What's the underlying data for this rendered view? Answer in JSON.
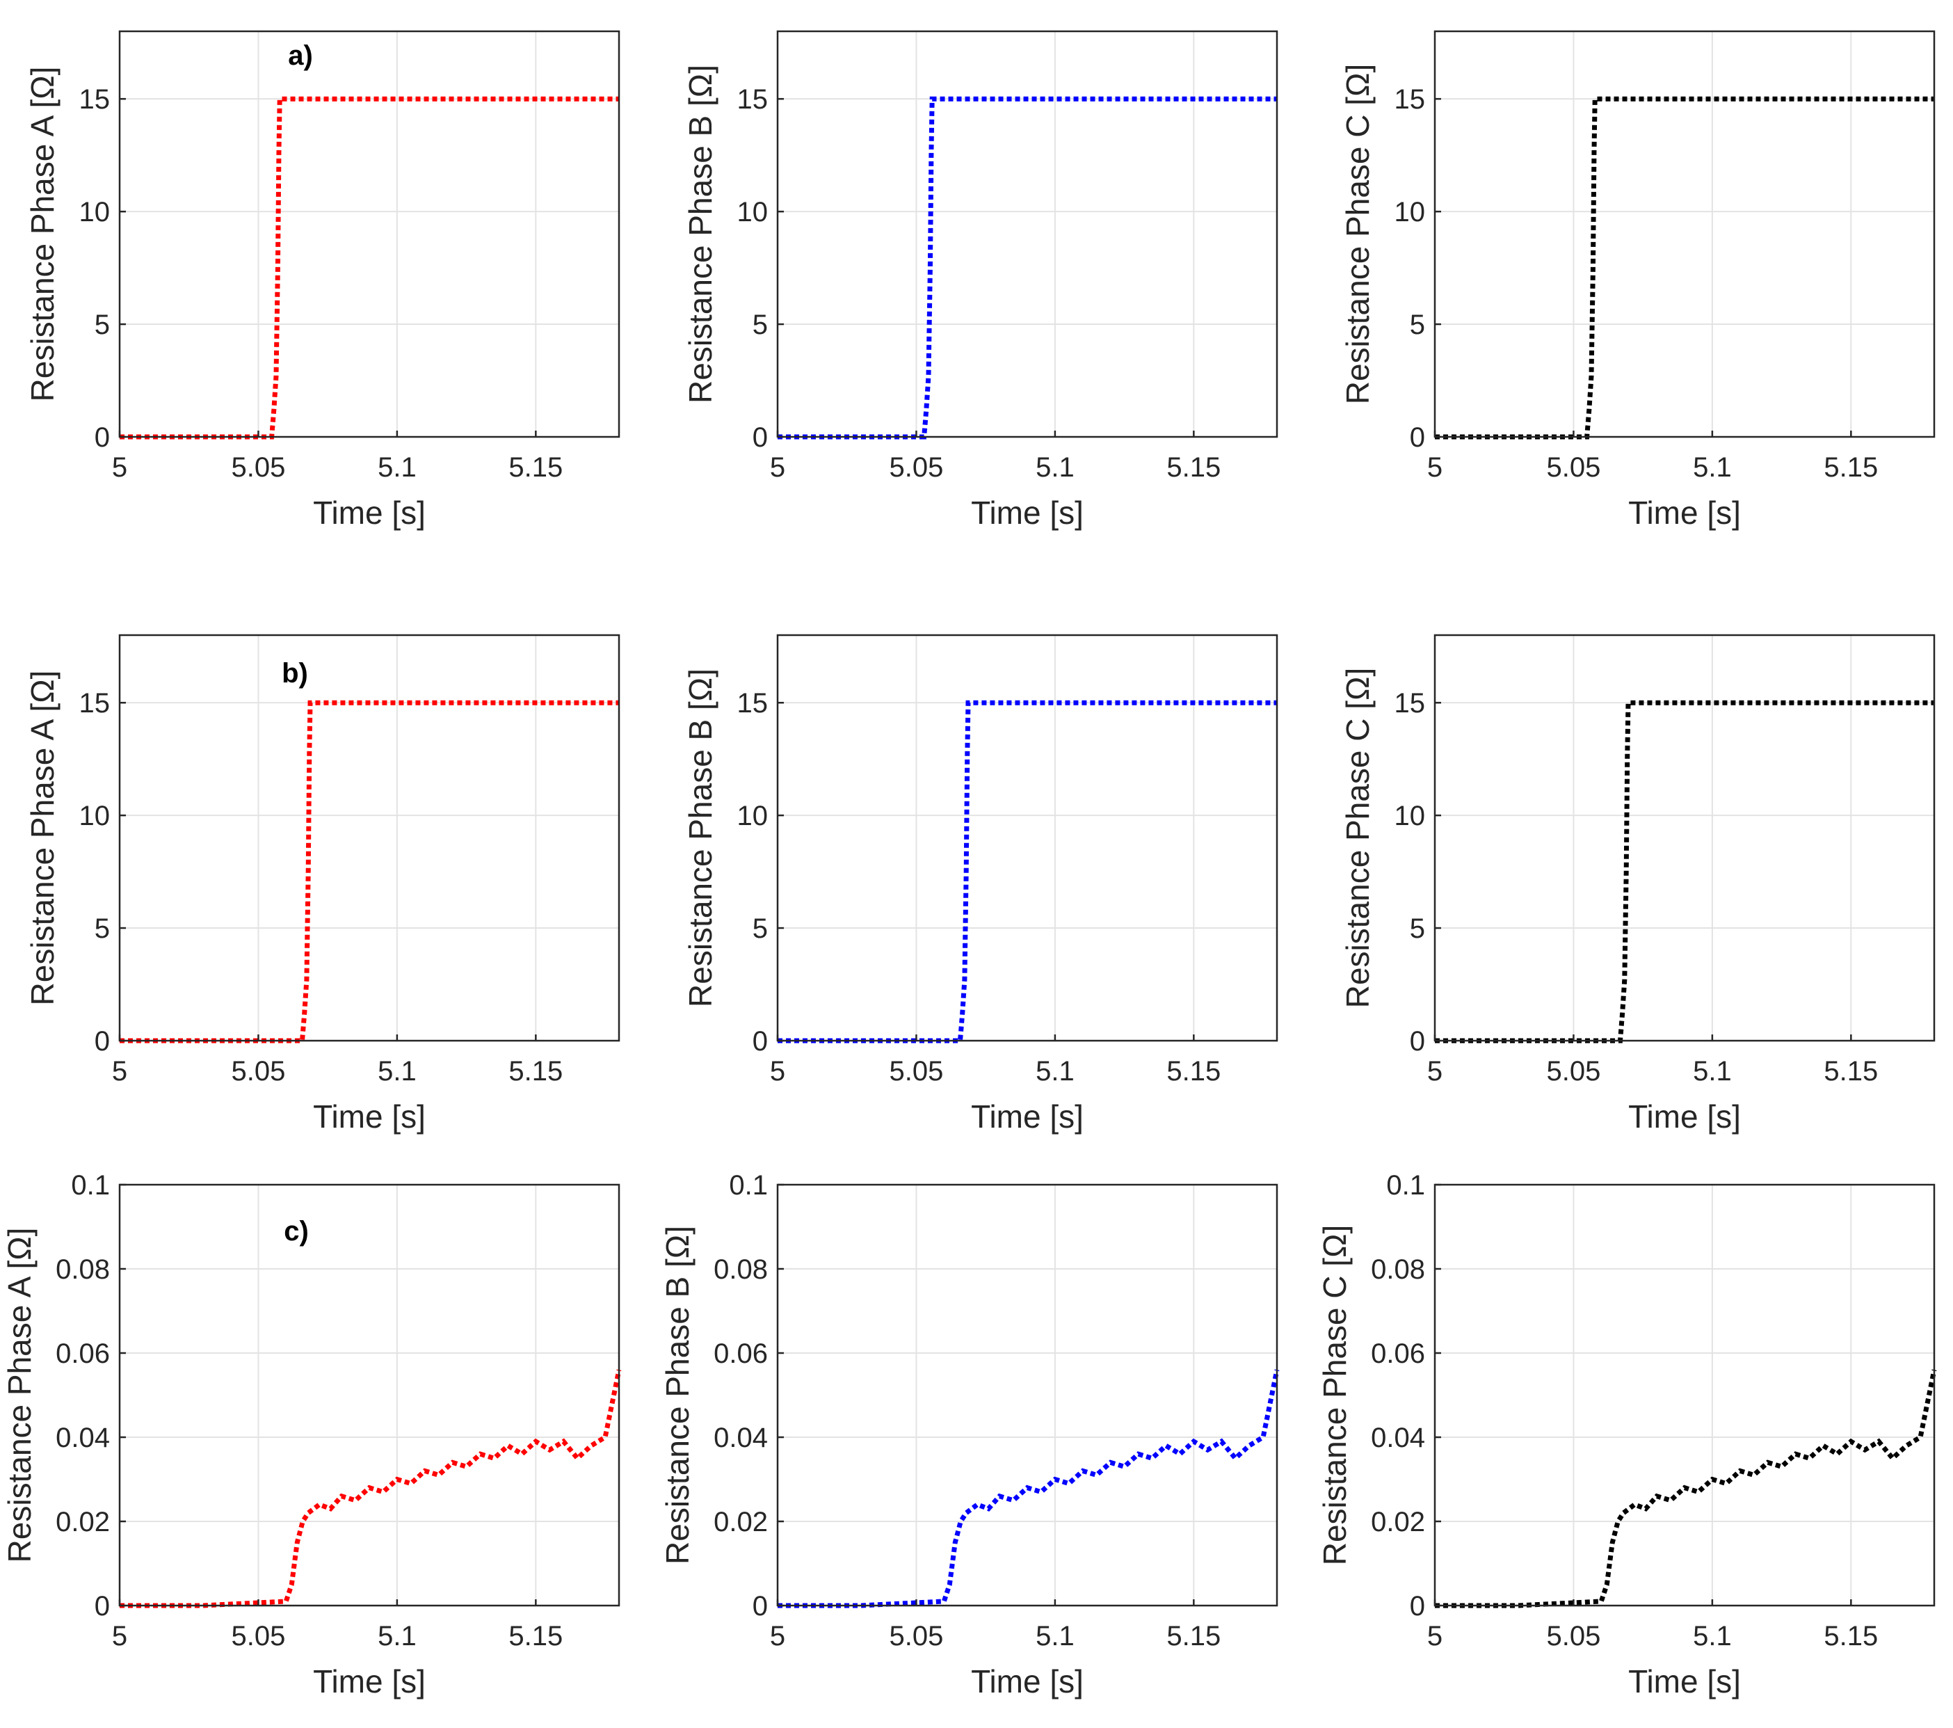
{
  "chart_data": [
    {
      "panel": "a)",
      "type": "line",
      "series": [
        {
          "name": "Phase A",
          "color": "#ff0000",
          "shape": "step",
          "t_jump": 5.057,
          "level": 15
        }
      ],
      "xlabel": "Time [s]",
      "ylabel": "Resistance Phase A  [Ω]",
      "xlim": [
        5,
        5.18
      ],
      "ylim": [
        0,
        18
      ],
      "xticks": [
        5,
        5.05,
        5.1,
        5.15
      ],
      "xtick_labels": [
        "5",
        "5.05",
        "5.1",
        "5.15"
      ],
      "yticks": [
        0,
        5,
        10,
        15
      ],
      "ytick_labels": [
        "0",
        "5",
        "10",
        "15"
      ],
      "grid": true
    },
    {
      "panel": "",
      "type": "line",
      "series": [
        {
          "name": "Phase B",
          "color": "#0000ff",
          "shape": "step",
          "t_jump": 5.055,
          "level": 15
        }
      ],
      "xlabel": "Time [s]",
      "ylabel": "Resistance Phase B [Ω]",
      "xlim": [
        5,
        5.18
      ],
      "ylim": [
        0,
        18
      ],
      "xticks": [
        5,
        5.05,
        5.1,
        5.15
      ],
      "xtick_labels": [
        "5",
        "5.05",
        "5.1",
        "5.15"
      ],
      "yticks": [
        0,
        5,
        10,
        15
      ],
      "ytick_labels": [
        "0",
        "5",
        "10",
        "15"
      ],
      "grid": true
    },
    {
      "panel": "",
      "type": "line",
      "series": [
        {
          "name": "Phase C",
          "color": "#000000",
          "shape": "step",
          "t_jump": 5.057,
          "level": 15
        }
      ],
      "xlabel": "Time [s]",
      "ylabel": "Resistance Phase C [Ω]",
      "xlim": [
        5,
        5.18
      ],
      "ylim": [
        0,
        18
      ],
      "xticks": [
        5,
        5.05,
        5.1,
        5.15
      ],
      "xtick_labels": [
        "5",
        "5.05",
        "5.1",
        "5.15"
      ],
      "yticks": [
        0,
        5,
        10,
        15
      ],
      "ytick_labels": [
        "0",
        "5",
        "10",
        "15"
      ],
      "grid": true
    },
    {
      "panel": "b)",
      "type": "line",
      "series": [
        {
          "name": "Phase A",
          "color": "#ff0000",
          "shape": "step",
          "t_jump": 5.068,
          "level": 15
        }
      ],
      "xlabel": "Time [s]",
      "ylabel": "Resistance Phase A  [Ω]",
      "xlim": [
        5,
        5.18
      ],
      "ylim": [
        0,
        18
      ],
      "xticks": [
        5,
        5.05,
        5.1,
        5.15
      ],
      "xtick_labels": [
        "5",
        "5.05",
        "5.1",
        "5.15"
      ],
      "yticks": [
        0,
        5,
        10,
        15
      ],
      "ytick_labels": [
        "0",
        "5",
        "10",
        "15"
      ],
      "grid": true
    },
    {
      "panel": "",
      "type": "line",
      "series": [
        {
          "name": "Phase B",
          "color": "#0000ff",
          "shape": "step",
          "t_jump": 5.068,
          "level": 15
        }
      ],
      "xlabel": "Time [s]",
      "ylabel": "Resistance Phase B [Ω]",
      "xlim": [
        5,
        5.18
      ],
      "ylim": [
        0,
        18
      ],
      "xticks": [
        5,
        5.05,
        5.1,
        5.15
      ],
      "xtick_labels": [
        "5",
        "5.05",
        "5.1",
        "5.15"
      ],
      "yticks": [
        0,
        5,
        10,
        15
      ],
      "ytick_labels": [
        "0",
        "5",
        "10",
        "15"
      ],
      "grid": true
    },
    {
      "panel": "",
      "type": "line",
      "series": [
        {
          "name": "Phase C",
          "color": "#000000",
          "shape": "step",
          "t_jump": 5.069,
          "level": 15
        }
      ],
      "xlabel": "Time [s]",
      "ylabel": "Resistance Phase C [Ω]",
      "xlim": [
        5,
        5.18
      ],
      "ylim": [
        0,
        18
      ],
      "xticks": [
        5,
        5.05,
        5.1,
        5.15
      ],
      "xtick_labels": [
        "5",
        "5.05",
        "5.1",
        "5.15"
      ],
      "yticks": [
        0,
        5,
        10,
        15
      ],
      "ytick_labels": [
        "0",
        "5",
        "10",
        "15"
      ],
      "grid": true
    },
    {
      "panel": "c)",
      "type": "line",
      "series": [
        {
          "name": "Phase A",
          "color": "#ff0000",
          "shape": "points",
          "x": [
            5,
            5.03,
            5.06,
            5.062,
            5.064,
            5.066,
            5.068,
            5.072,
            5.076,
            5.08,
            5.085,
            5.09,
            5.095,
            5.1,
            5.105,
            5.11,
            5.115,
            5.12,
            5.125,
            5.13,
            5.135,
            5.14,
            5.145,
            5.15,
            5.155,
            5.16,
            5.165,
            5.17,
            5.175,
            5.18
          ],
          "y": [
            0,
            0,
            0.001,
            0.005,
            0.015,
            0.02,
            0.022,
            0.024,
            0.023,
            0.026,
            0.025,
            0.028,
            0.027,
            0.03,
            0.029,
            0.032,
            0.031,
            0.034,
            0.033,
            0.036,
            0.035,
            0.038,
            0.036,
            0.039,
            0.037,
            0.039,
            0.035,
            0.038,
            0.04,
            0.056
          ]
        }
      ],
      "xlabel": "Time [s]",
      "ylabel": "Resistance Phase A  [Ω]",
      "xlim": [
        5,
        5.18
      ],
      "ylim": [
        0,
        0.1
      ],
      "xticks": [
        5,
        5.05,
        5.1,
        5.15
      ],
      "xtick_labels": [
        "5",
        "5.05",
        "5.1",
        "5.15"
      ],
      "yticks": [
        0,
        0.02,
        0.04,
        0.06,
        0.08,
        0.1
      ],
      "ytick_labels": [
        "0",
        "0.02",
        "0.04",
        "0.06",
        "0.08",
        "0.1"
      ],
      "grid": true
    },
    {
      "panel": "",
      "type": "line",
      "series": [
        {
          "name": "Phase B",
          "color": "#0000ff",
          "shape": "points",
          "x": [
            5,
            5.03,
            5.06,
            5.062,
            5.064,
            5.066,
            5.068,
            5.072,
            5.076,
            5.08,
            5.085,
            5.09,
            5.095,
            5.1,
            5.105,
            5.11,
            5.115,
            5.12,
            5.125,
            5.13,
            5.135,
            5.14,
            5.145,
            5.15,
            5.155,
            5.16,
            5.165,
            5.17,
            5.175,
            5.18
          ],
          "y": [
            0,
            0,
            0.001,
            0.005,
            0.015,
            0.02,
            0.022,
            0.024,
            0.023,
            0.026,
            0.025,
            0.028,
            0.027,
            0.03,
            0.029,
            0.032,
            0.031,
            0.034,
            0.033,
            0.036,
            0.035,
            0.038,
            0.036,
            0.039,
            0.037,
            0.039,
            0.035,
            0.038,
            0.04,
            0.056
          ]
        }
      ],
      "xlabel": "Time [s]",
      "ylabel": "Resistance Phase B [Ω]",
      "xlim": [
        5,
        5.18
      ],
      "ylim": [
        0,
        0.1
      ],
      "xticks": [
        5,
        5.05,
        5.1,
        5.15
      ],
      "xtick_labels": [
        "5",
        "5.05",
        "5.1",
        "5.15"
      ],
      "yticks": [
        0,
        0.02,
        0.04,
        0.06,
        0.08,
        0.1
      ],
      "ytick_labels": [
        "0",
        "0.02",
        "0.04",
        "0.06",
        "0.08",
        "0.1"
      ],
      "grid": true
    },
    {
      "panel": "",
      "type": "line",
      "series": [
        {
          "name": "Phase C",
          "color": "#000000",
          "shape": "points",
          "x": [
            5,
            5.03,
            5.06,
            5.062,
            5.064,
            5.066,
            5.068,
            5.072,
            5.076,
            5.08,
            5.085,
            5.09,
            5.095,
            5.1,
            5.105,
            5.11,
            5.115,
            5.12,
            5.125,
            5.13,
            5.135,
            5.14,
            5.145,
            5.15,
            5.155,
            5.16,
            5.165,
            5.17,
            5.175,
            5.18
          ],
          "y": [
            0,
            0,
            0.001,
            0.005,
            0.015,
            0.02,
            0.022,
            0.024,
            0.023,
            0.026,
            0.025,
            0.028,
            0.027,
            0.03,
            0.029,
            0.032,
            0.031,
            0.034,
            0.033,
            0.036,
            0.035,
            0.038,
            0.036,
            0.039,
            0.037,
            0.039,
            0.035,
            0.038,
            0.04,
            0.056
          ]
        }
      ],
      "xlabel": "Time [s]",
      "ylabel": "Resistance Phase C [Ω]",
      "xlim": [
        5,
        5.18
      ],
      "ylim": [
        0,
        0.1
      ],
      "xticks": [
        5,
        5.05,
        5.1,
        5.15
      ],
      "xtick_labels": [
        "5",
        "5.05",
        "5.1",
        "5.15"
      ],
      "yticks": [
        0,
        0.02,
        0.04,
        0.06,
        0.08,
        0.1
      ],
      "ytick_labels": [
        "0",
        "0.02",
        "0.04",
        "0.06",
        "0.08",
        "0.1"
      ],
      "grid": true
    }
  ]
}
